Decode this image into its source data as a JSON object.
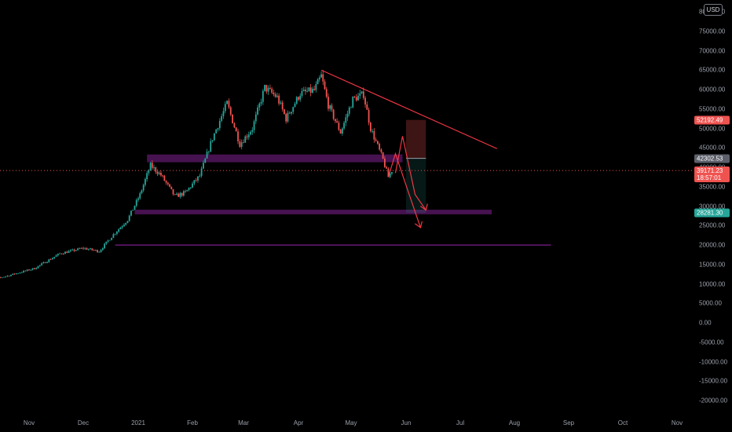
{
  "header": {
    "currency": "USD"
  },
  "y_axis": {
    "ticks": [
      "80000.00",
      "75000.00",
      "70000.00",
      "65000.00",
      "60000.00",
      "55000.00",
      "50000.00",
      "45000.00",
      "40000.00",
      "35000.00",
      "30000.00",
      "25000.00",
      "20000.00",
      "15000.00",
      "10000.00",
      "5000.00",
      "0.00",
      "-5000.00",
      "-10000.00",
      "-15000.00",
      "-20000.00"
    ]
  },
  "x_axis": {
    "ticks": [
      "Nov",
      "Dec",
      "2021",
      "Feb",
      "Mar",
      "Apr",
      "May",
      "Jun",
      "Jul",
      "Aug",
      "Sep",
      "Oct",
      "Nov"
    ]
  },
  "price_labels": [
    {
      "text": "52192.49",
      "value": 52192.49,
      "color": "#ef5350"
    },
    {
      "text": "42302.53",
      "value": 42302.53,
      "color": "#5d606b"
    },
    {
      "text": "39171.23",
      "value": 39171.23,
      "color": "#ef5350",
      "subtext": "18:57:01"
    },
    {
      "text": "28281.30",
      "value": 28281.3,
      "color": "#26a69a"
    }
  ],
  "colors": {
    "up": "#26a69a",
    "down": "#ef5350",
    "zone": "#9c27b0",
    "trendline": "#f23645"
  },
  "chart_data": {
    "type": "candlestick",
    "x_range": [
      "2020-10-07",
      "2021-11-29"
    ],
    "y_range": [
      -25000,
      82000
    ],
    "series": [
      {
        "values": [
          [
            "2020-10-07",
            10600
          ],
          [
            "2020-10-21",
            12200
          ],
          [
            "2020-11-04",
            14000
          ],
          [
            "2020-11-18",
            17800
          ],
          [
            "2020-12-01",
            19200
          ],
          [
            "2020-12-10",
            18400
          ],
          [
            "2020-12-18",
            22700
          ],
          [
            "2020-12-26",
            26500
          ],
          [
            "2021-01-02",
            33000
          ],
          [
            "2021-01-08",
            40500
          ],
          [
            "2021-01-14",
            38000
          ],
          [
            "2021-01-22",
            32500
          ],
          [
            "2021-01-28",
            33500
          ],
          [
            "2021-02-05",
            37800
          ],
          [
            "2021-02-12",
            47500
          ],
          [
            "2021-02-20",
            56500
          ],
          [
            "2021-02-27",
            46000
          ],
          [
            "2021-03-06",
            50000
          ],
          [
            "2021-03-13",
            60500
          ],
          [
            "2021-03-20",
            58000
          ],
          [
            "2021-03-25",
            52500
          ],
          [
            "2021-04-02",
            59000
          ],
          [
            "2021-04-10",
            59800
          ],
          [
            "2021-04-14",
            63500
          ],
          [
            "2021-04-18",
            56000
          ],
          [
            "2021-04-25",
            49000
          ],
          [
            "2021-05-02",
            57500
          ],
          [
            "2021-05-08",
            58800
          ],
          [
            "2021-05-12",
            50000
          ],
          [
            "2021-05-19",
            42000
          ],
          [
            "2021-05-22",
            37500
          ],
          [
            "2021-05-24",
            39171
          ]
        ]
      }
    ],
    "levels": [
      42302.53,
      28281.3,
      20000
    ],
    "annotations": [
      "52192.49",
      "42302.53",
      "39171.23",
      "18:57:01",
      "28281.30"
    ]
  }
}
